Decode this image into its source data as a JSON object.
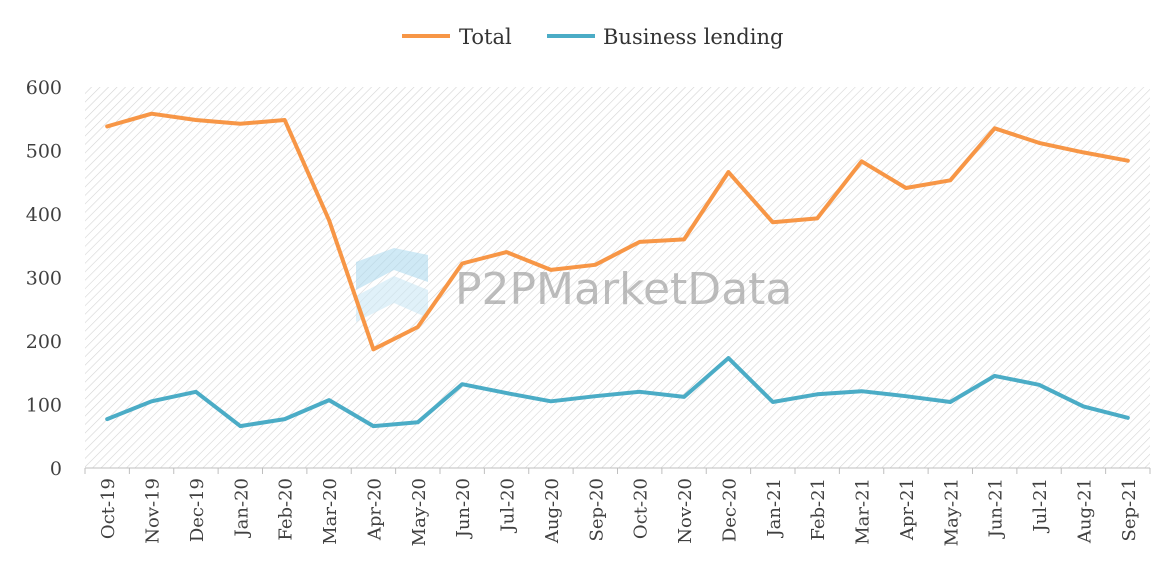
{
  "chart_data": {
    "type": "line",
    "title": "",
    "xlabel": "",
    "ylabel": "",
    "ylim": [
      0,
      600
    ],
    "yticks": [
      0,
      100,
      200,
      300,
      400,
      500,
      600
    ],
    "legend_position": "top-center",
    "grid": false,
    "watermark": "P2PMarketData",
    "categories": [
      "Oct-19",
      "Nov-19",
      "Dec-19",
      "Jan-20",
      "Feb-20",
      "Mar-20",
      "Apr-20",
      "May-20",
      "Jun-20",
      "Jul-20",
      "Aug-20",
      "Sep-20",
      "Oct-20",
      "Nov-20",
      "Dec-20",
      "Jan-21",
      "Feb-21",
      "Mar-21",
      "Apr-21",
      "May-21",
      "Jun-21",
      "Jul-21",
      "Aug-21",
      "Sep-21"
    ],
    "series": [
      {
        "name": "Total",
        "color": "#F79646",
        "values": [
          538,
          558,
          548,
          542,
          548,
          390,
          187,
          222,
          322,
          340,
          312,
          320,
          356,
          360,
          466,
          387,
          393,
          483,
          441,
          453,
          535,
          512,
          497,
          484
        ]
      },
      {
        "name": "Business lending",
        "color": "#4BACC6",
        "values": [
          77,
          105,
          120,
          66,
          77,
          107,
          66,
          72,
          132,
          118,
          105,
          113,
          120,
          112,
          173,
          104,
          116,
          121,
          113,
          104,
          145,
          131,
          97,
          79
        ]
      }
    ]
  }
}
